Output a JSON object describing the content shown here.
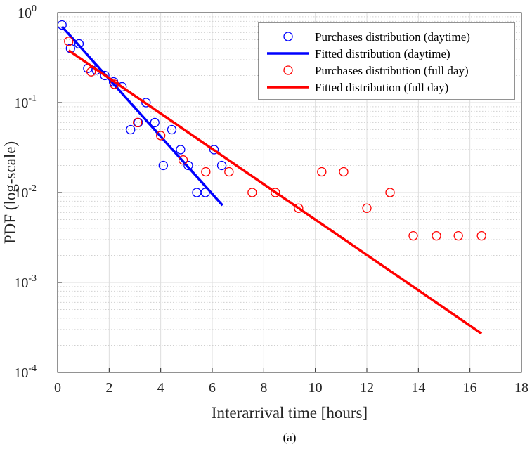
{
  "caption": "(a)",
  "chart_data": {
    "type": "scatter",
    "xlabel": "Interarrival time [hours]",
    "ylabel": "PDF (log-scale)",
    "xlim": [
      0,
      18
    ],
    "ylim": [
      0.0001,
      1
    ],
    "yscale": "log",
    "grid": true,
    "minor_grid": true,
    "legend_position": "top-right",
    "x_ticks": [
      "0",
      "2",
      "4",
      "6",
      "8",
      "10",
      "12",
      "14",
      "16",
      "18"
    ],
    "y_ticks": [
      {
        "base": "10",
        "exp": "0"
      },
      {
        "base": "10",
        "exp": "-1"
      },
      {
        "base": "10",
        "exp": "-2"
      },
      {
        "base": "10",
        "exp": "-3"
      },
      {
        "base": "10",
        "exp": "-4"
      }
    ],
    "series": [
      {
        "name": "Purchases distribution (daytime)",
        "kind": "scatter",
        "color": "#0000ff",
        "points": [
          [
            0.17,
            0.73
          ],
          [
            0.5,
            0.4
          ],
          [
            0.83,
            0.45
          ],
          [
            1.17,
            0.24
          ],
          [
            1.5,
            0.23
          ],
          [
            1.83,
            0.2
          ],
          [
            2.17,
            0.17
          ],
          [
            2.5,
            0.15
          ],
          [
            2.83,
            0.05
          ],
          [
            3.13,
            0.06
          ],
          [
            3.43,
            0.1
          ],
          [
            3.77,
            0.06
          ],
          [
            4.1,
            0.02
          ],
          [
            4.43,
            0.05
          ],
          [
            4.77,
            0.03
          ],
          [
            5.07,
            0.02
          ],
          [
            5.4,
            0.01
          ],
          [
            5.73,
            0.01
          ],
          [
            6.07,
            0.03
          ],
          [
            6.37,
            0.02
          ]
        ]
      },
      {
        "name": "Fitted distribution (daytime)",
        "kind": "line",
        "color": "#0000ff",
        "points": [
          [
            0.17,
            0.7
          ],
          [
            6.4,
            0.0072
          ]
        ]
      },
      {
        "name": "Purchases distribution (full day)",
        "kind": "scatter",
        "color": "#ff0000",
        "points": [
          [
            0.43,
            0.48
          ],
          [
            1.3,
            0.22
          ],
          [
            2.2,
            0.16
          ],
          [
            3.1,
            0.06
          ],
          [
            4.0,
            0.043
          ],
          [
            4.87,
            0.023
          ],
          [
            5.75,
            0.017
          ],
          [
            6.65,
            0.017
          ],
          [
            7.55,
            0.01
          ],
          [
            8.45,
            0.01
          ],
          [
            9.35,
            0.0067
          ],
          [
            10.25,
            0.017
          ],
          [
            11.1,
            0.017
          ],
          [
            12.0,
            0.0067
          ],
          [
            12.9,
            0.01
          ],
          [
            13.8,
            0.0033
          ],
          [
            14.7,
            0.0033
          ],
          [
            15.55,
            0.0033
          ],
          [
            16.45,
            0.0033
          ]
        ]
      },
      {
        "name": "Fitted distribution (full day)",
        "kind": "line",
        "color": "#ff0000",
        "points": [
          [
            0.43,
            0.38
          ],
          [
            16.45,
            0.00027
          ]
        ]
      }
    ]
  }
}
